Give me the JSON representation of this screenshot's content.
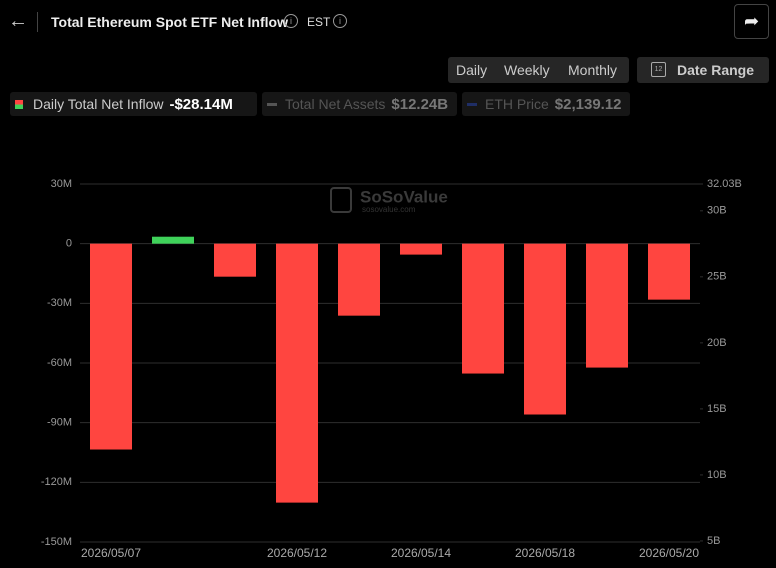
{
  "header": {
    "title": "Total Ethereum Spot ETF Net Inflow",
    "timezone": "EST"
  },
  "controls": {
    "periods": [
      "Daily",
      "Weekly",
      "Monthly"
    ],
    "active": 0,
    "date_range": "Date Range"
  },
  "legend": [
    {
      "name": "Daily Total Net Inflow",
      "value": "-$28.14M"
    },
    {
      "name": "Total Net Assets",
      "value": "$12.24B"
    },
    {
      "name": "ETH Price",
      "value": "$2,139.12"
    }
  ],
  "watermark": {
    "brand": "SoSoValue",
    "site": "sosovalue.com"
  },
  "chart_data": {
    "type": "bar",
    "categories": [
      "2026/05/07",
      null,
      null,
      "2026/05/12",
      null,
      "2026/05/14",
      null,
      "2026/05/18",
      null,
      "2026/05/20"
    ],
    "values": [
      -103.5,
      3.5,
      -16.6,
      -130.2,
      -36.2,
      -5.5,
      -65.3,
      -85.9,
      -62.3,
      -28.14
    ],
    "color": "#ff4540",
    "positive_color": "#3fd25a",
    "ylim": [
      -150,
      30
    ],
    "yticks": [
      {
        "value": 30,
        "label": "30M"
      },
      0,
      {
        "value": -30,
        "label": "-30M"
      },
      {
        "value": -60,
        "label": "-60M"
      },
      {
        "value": -90,
        "label": "-90M"
      },
      {
        "value": -120,
        "label": "-120M"
      },
      {
        "value": -150,
        "label": "-150M"
      }
    ],
    "y2lim": [
      4.92,
      32.03
    ],
    "y2ticks": [
      {
        "value": 32.03,
        "label": "32.03B"
      },
      {
        "value": 30,
        "label": "30B"
      },
      {
        "value": 25,
        "label": "25B"
      },
      {
        "value": 20,
        "label": "20B"
      },
      {
        "value": 15,
        "label": "15B"
      },
      {
        "value": 10,
        "label": "10B"
      },
      {
        "value": 5,
        "label": "5B"
      }
    ],
    "grid": true
  }
}
